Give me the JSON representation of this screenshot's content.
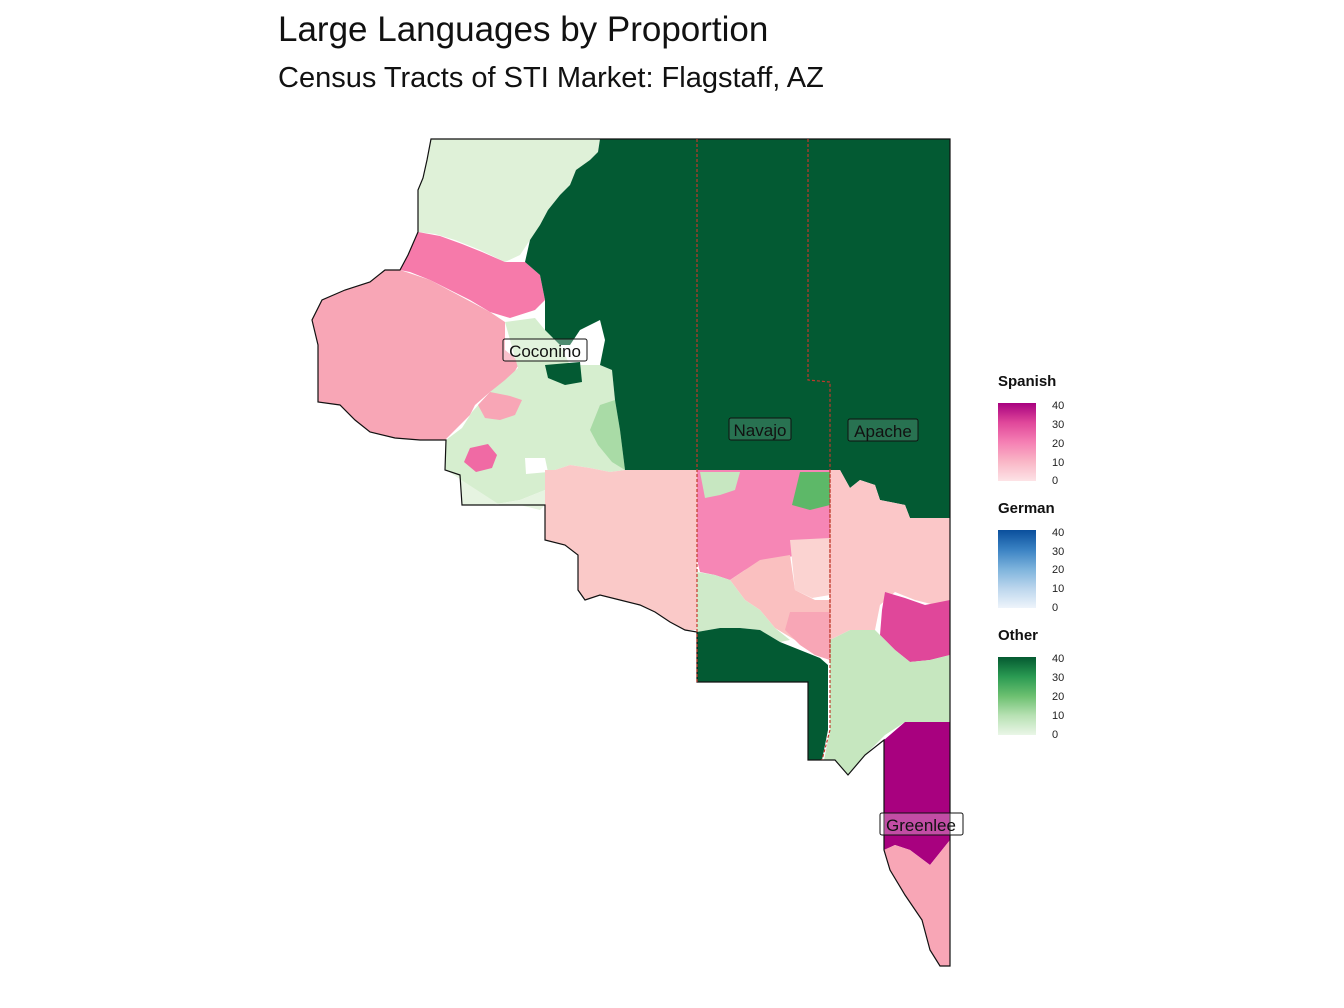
{
  "title": "Large Languages by Proportion",
  "subtitle": "Census Tracts of STI Market: Flagstaff, AZ",
  "counties": [
    {
      "name": "Coconino"
    },
    {
      "name": "Navajo"
    },
    {
      "name": "Apache"
    },
    {
      "name": "Greenlee"
    }
  ],
  "legends": [
    {
      "title": "Spanish",
      "ticks": [
        "40",
        "30",
        "20",
        "10",
        "0"
      ],
      "colors": [
        "#a8017f",
        "#e0479a",
        "#f57fb3",
        "#f9b6c6",
        "#fde3e6"
      ]
    },
    {
      "title": "German",
      "ticks": [
        "40",
        "30",
        "20",
        "10",
        "0"
      ],
      "colors": [
        "#0a4f9c",
        "#3a82c3",
        "#7db3dc",
        "#bcd6ed",
        "#eef4fb"
      ]
    },
    {
      "title": "Other",
      "ticks": [
        "40",
        "30",
        "20",
        "10",
        "0"
      ],
      "colors": [
        "#045a31",
        "#2a9a52",
        "#6cc070",
        "#b7e1b3",
        "#eaf6e7"
      ]
    }
  ],
  "palette": {
    "dark_green": "#035a33",
    "mid_green": "#5db868",
    "light_green": "#c9e9c4",
    "pale_green": "#dff1d8",
    "magenta": "#a8017f",
    "hot_pink": "#e0479a",
    "pink": "#f67aaa",
    "light_pink": "#f8a6b6",
    "pale_pink": "#fac9c8",
    "county_border": "#c0392b"
  }
}
